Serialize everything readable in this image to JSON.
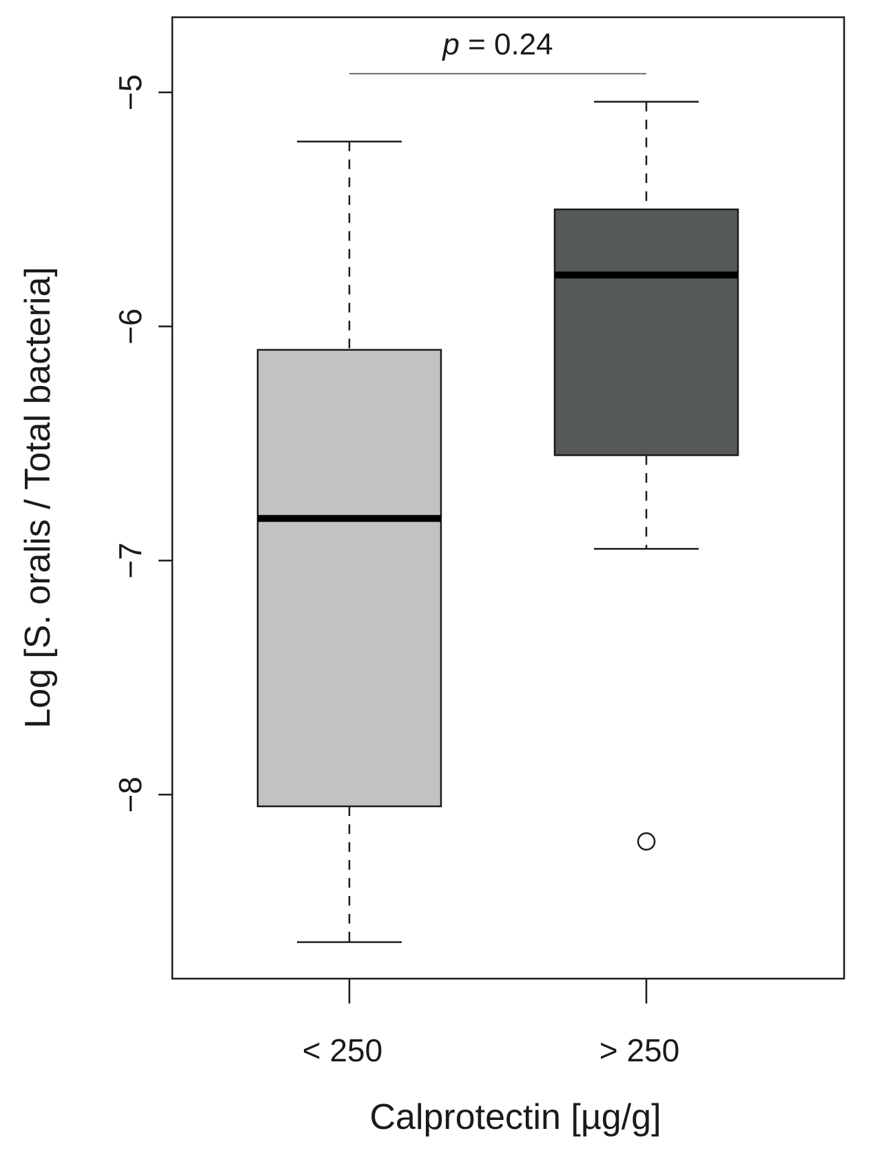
{
  "chart_data": {
    "type": "box",
    "title": "",
    "xlabel": "Calprotectin [µg/g]",
    "ylabel": "Log [S. oralis / Total bacteria]",
    "ylim": [
      -8.8,
      -4.7
    ],
    "yticks": [
      -5,
      -6,
      -7,
      -8
    ],
    "ytick_labels": [
      "−5",
      "−6",
      "−7",
      "−8"
    ],
    "categories": [
      "< 250",
      "> 250"
    ],
    "boxes": [
      {
        "category": "< 250",
        "whisker_low": -8.63,
        "q1": -8.05,
        "median": -6.82,
        "q3": -6.1,
        "whisker_high": -5.21,
        "outliers": [],
        "color": "#c2c2c2"
      },
      {
        "category": "> 250",
        "whisker_low": -6.95,
        "q1": -6.55,
        "median": -5.78,
        "q3": -5.5,
        "whisker_high": -5.04,
        "outliers": [
          -8.2
        ],
        "color": "#555959"
      }
    ],
    "annotation": {
      "italic_part": "p",
      "rest": " = 0.24",
      "y": -4.92
    },
    "grid": false,
    "legend": "none"
  }
}
